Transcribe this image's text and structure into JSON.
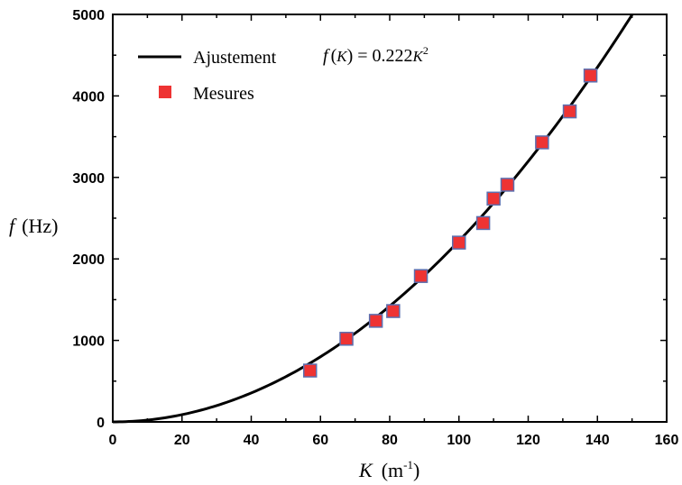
{
  "chart_data": {
    "type": "scatter",
    "xlabel": {
      "var": "K",
      "unit_open": "(m",
      "unit_sup": "-1",
      "unit_close": ")"
    },
    "ylabel": {
      "var": "f",
      "unit": "(Hz)"
    },
    "xlim": [
      0,
      160
    ],
    "ylim": [
      0,
      5000
    ],
    "xticks": [
      "0",
      "20",
      "40",
      "60",
      "80",
      "100",
      "120",
      "140",
      "160"
    ],
    "yticks": [
      "0",
      "1000",
      "2000",
      "3000",
      "4000",
      "5000"
    ],
    "grid": false,
    "legend_position": "top-left",
    "legend": [
      {
        "label": "Ajustement",
        "kind": "line",
        "color": "#000000"
      },
      {
        "label": "Mesures",
        "kind": "marker",
        "color": "#ee3333"
      }
    ],
    "fit_equation": {
      "lhs": "f",
      "arg": "K",
      "coef": "0.222",
      "var": "K",
      "exp": "2"
    },
    "fit": {
      "coefficient": 0.222,
      "power": 2,
      "color": "#000000"
    },
    "series": [
      {
        "name": "Mesures",
        "color": "#ee3333",
        "edge_color": "#5b6fb0",
        "points": [
          {
            "x": 57,
            "y": 630
          },
          {
            "x": 67.5,
            "y": 1020
          },
          {
            "x": 76,
            "y": 1240
          },
          {
            "x": 81,
            "y": 1360
          },
          {
            "x": 89,
            "y": 1790
          },
          {
            "x": 100,
            "y": 2200
          },
          {
            "x": 107,
            "y": 2440
          },
          {
            "x": 110,
            "y": 2740
          },
          {
            "x": 114,
            "y": 2910
          },
          {
            "x": 124,
            "y": 3430
          },
          {
            "x": 132,
            "y": 3810
          },
          {
            "x": 138,
            "y": 4250
          }
        ]
      }
    ]
  }
}
